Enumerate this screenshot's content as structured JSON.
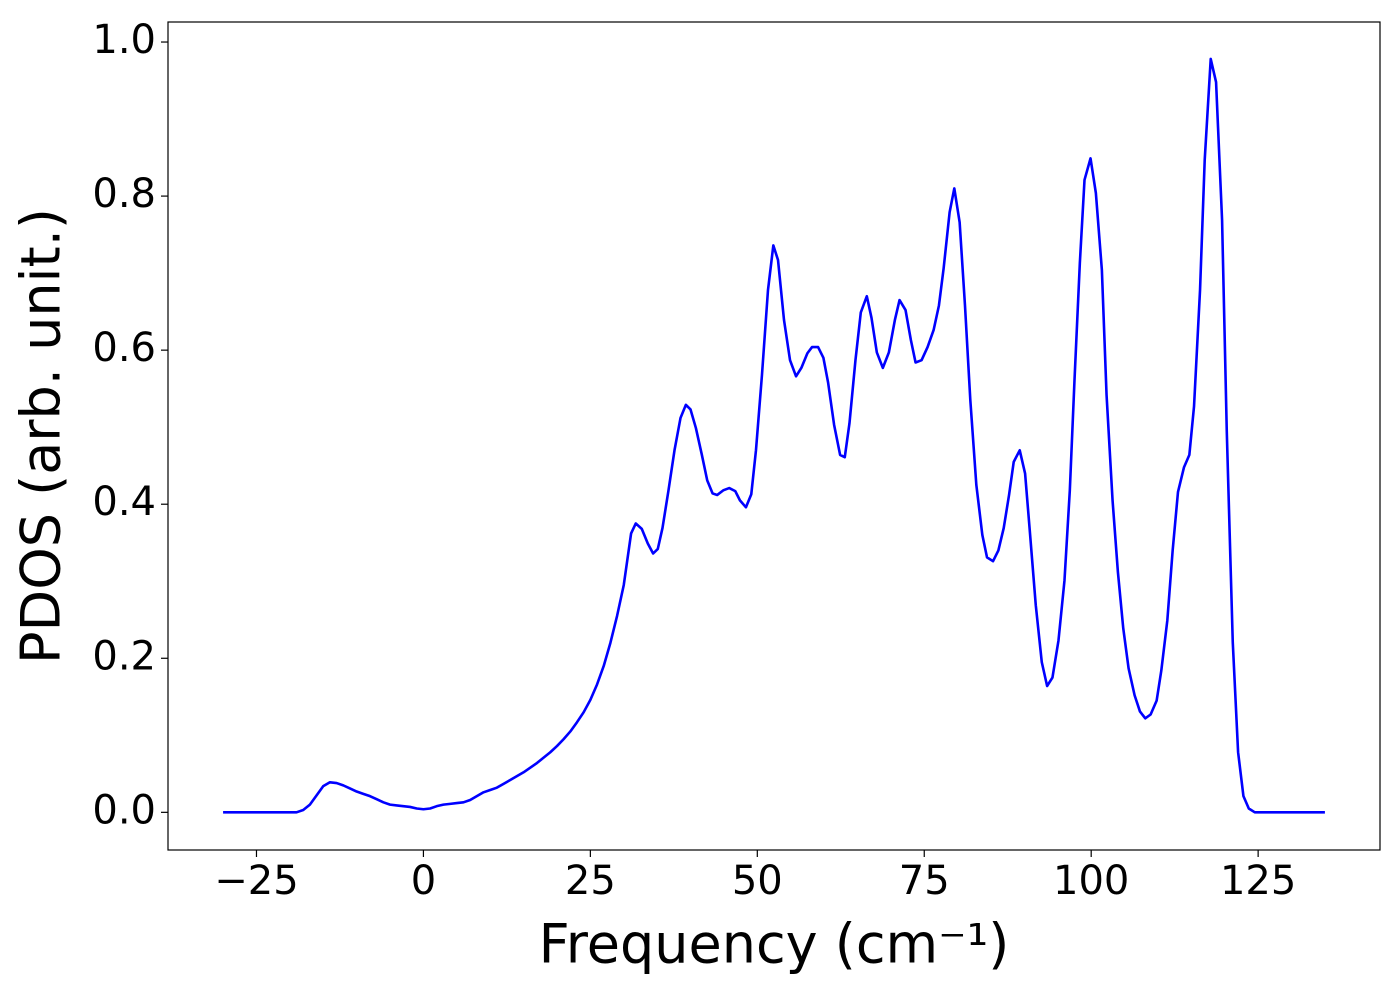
{
  "chart_data": {
    "type": "line",
    "xlabel": "Frequency (cm⁻¹)",
    "ylabel": "PDOS (arb. unit.)",
    "xlim": [
      -38.25,
      143.25
    ],
    "ylim": [
      -0.0489,
      1.026
    ],
    "xticks": [
      {
        "value": -25,
        "label": "−25"
      },
      0,
      25,
      50,
      75,
      100,
      125
    ],
    "yticks": [
      {
        "value": 0,
        "label": "0.0"
      },
      {
        "value": 0.2,
        "label": "0.2"
      },
      {
        "value": 0.4,
        "label": "0.4"
      },
      {
        "value": 0.6,
        "label": "0.6"
      },
      {
        "value": 0.8,
        "label": "0.8"
      },
      {
        "value": 1,
        "label": "1.0"
      }
    ],
    "series": [
      {
        "color": "#0000ff",
        "x": [
          -30,
          -25,
          -20,
          -19,
          -18,
          -17,
          -16,
          -15,
          -14,
          -13,
          -12,
          -11,
          -10,
          -9,
          -8,
          -7,
          -6,
          -5,
          -4,
          -3,
          -2,
          -1,
          0,
          1,
          2,
          3,
          4,
          5,
          6,
          7,
          8,
          9,
          10,
          11,
          12,
          13,
          14,
          15,
          16,
          17,
          18,
          19,
          20,
          21,
          22,
          23,
          24,
          25,
          26,
          27,
          28,
          29,
          30,
          31.1,
          31.8,
          32.7,
          33.6,
          34.4,
          35.1,
          35.8,
          36.7,
          37.6,
          38.5,
          39.3,
          40.0,
          40.8,
          41.7,
          42.5,
          43.3,
          44.0,
          44.9,
          45.8,
          46.7,
          47.4,
          48.3,
          49.1,
          49.8,
          50.7,
          51.6,
          52.4,
          53.1,
          54.0,
          54.9,
          55.8,
          56.6,
          57.5,
          58.2,
          59.1,
          59.9,
          60.6,
          61.5,
          62.4,
          63.1,
          63.8,
          64.7,
          65.5,
          66.4,
          67.1,
          67.9,
          68.8,
          69.7,
          70.6,
          71.3,
          72.2,
          73.0,
          73.7,
          74.6,
          75.5,
          76.4,
          77.2,
          77.9,
          78.8,
          79.5,
          80.3,
          81.1,
          81.9,
          82.8,
          83.7,
          84.4,
          85.3,
          86.1,
          86.9,
          87.7,
          88.4,
          89.3,
          90.1,
          90.8,
          91.7,
          92.6,
          93.4,
          94.2,
          95.1,
          96.0,
          96.8,
          97.5,
          98.3,
          99.0,
          99.9,
          100.7,
          101.6,
          102.3,
          103.2,
          104.0,
          104.8,
          105.6,
          106.5,
          107.3,
          108.1,
          108.9,
          109.8,
          110.5,
          111.4,
          112.2,
          113.0,
          113.9,
          114.7,
          115.4,
          116.3,
          117.0,
          117.9,
          118.7,
          119.6,
          120.3,
          121.2,
          122.0,
          122.8,
          123.6,
          124.5,
          130,
          135
        ],
        "values": [
          0,
          0,
          0,
          0,
          0.003,
          0.01,
          0.022,
          0.034,
          0.039,
          0.038,
          0.035,
          0.031,
          0.027,
          0.024,
          0.021,
          0.017,
          0.013,
          0.01,
          0.009,
          0.008,
          0.007,
          0.005,
          0.004,
          0.005,
          0.008,
          0.01,
          0.011,
          0.012,
          0.013,
          0.016,
          0.021,
          0.026,
          0.029,
          0.032,
          0.037,
          0.042,
          0.047,
          0.052,
          0.058,
          0.064,
          0.071,
          0.078,
          0.086,
          0.095,
          0.105,
          0.117,
          0.13,
          0.146,
          0.166,
          0.19,
          0.22,
          0.255,
          0.295,
          0.362,
          0.375,
          0.368,
          0.349,
          0.336,
          0.342,
          0.369,
          0.418,
          0.47,
          0.512,
          0.529,
          0.523,
          0.499,
          0.464,
          0.431,
          0.414,
          0.412,
          0.418,
          0.421,
          0.417,
          0.405,
          0.396,
          0.413,
          0.47,
          0.568,
          0.678,
          0.736,
          0.717,
          0.639,
          0.587,
          0.566,
          0.577,
          0.596,
          0.604,
          0.604,
          0.59,
          0.558,
          0.503,
          0.464,
          0.461,
          0.505,
          0.587,
          0.649,
          0.67,
          0.642,
          0.597,
          0.577,
          0.597,
          0.639,
          0.665,
          0.652,
          0.613,
          0.584,
          0.587,
          0.604,
          0.626,
          0.658,
          0.706,
          0.779,
          0.81,
          0.766,
          0.658,
          0.535,
          0.425,
          0.36,
          0.331,
          0.326,
          0.34,
          0.369,
          0.412,
          0.455,
          0.47,
          0.44,
          0.366,
          0.269,
          0.195,
          0.164,
          0.175,
          0.223,
          0.301,
          0.418,
          0.561,
          0.713,
          0.821,
          0.849,
          0.804,
          0.704,
          0.542,
          0.405,
          0.312,
          0.239,
          0.187,
          0.152,
          0.131,
          0.122,
          0.127,
          0.145,
          0.184,
          0.249,
          0.34,
          0.416,
          0.448,
          0.464,
          0.527,
          0.678,
          0.847,
          0.978,
          0.948,
          0.769,
          0.496,
          0.221,
          0.078,
          0.021,
          0.005,
          0,
          0,
          0
        ]
      }
    ]
  }
}
